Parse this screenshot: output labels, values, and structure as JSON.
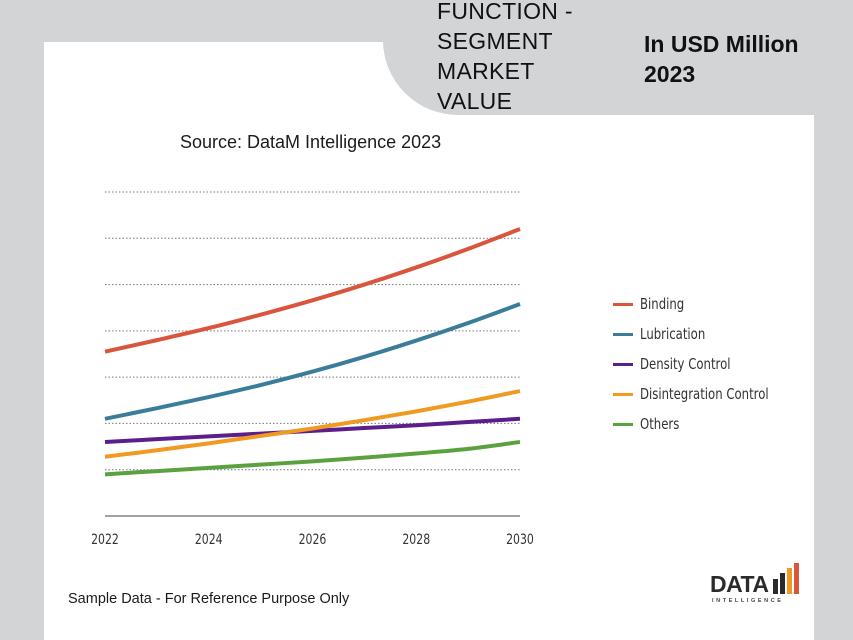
{
  "header": {
    "segment_title": "FUNCTION - SEGMENT MARKET VALUE",
    "unit_title": "In USD Million 2023"
  },
  "source_text": "Source: DataM Intelligence 2023",
  "footer_note": "Sample Data - For Reference Purpose Only",
  "logo": {
    "text": "DATA",
    "subtext": "INTELLIGENCE",
    "icon": "bar-chart-logo-icon"
  },
  "chart_data": {
    "type": "line",
    "title": "",
    "xlabel": "",
    "ylabel": "",
    "x_ticks": [
      "2022",
      "2024",
      "2026",
      "2028",
      "2030"
    ],
    "x": [
      2022,
      2023,
      2024,
      2025,
      2026,
      2027,
      2028,
      2029,
      2030
    ],
    "ylim": [
      0,
      7
    ],
    "grid": true,
    "legend_position": "right",
    "series": [
      {
        "name": "Binding",
        "color": "#d9553b",
        "values": [
          3.55,
          3.8,
          4.06,
          4.35,
          4.66,
          5.0,
          5.37,
          5.77,
          6.2
        ]
      },
      {
        "name": "Lubrication",
        "color": "#3a7d9b",
        "values": [
          2.1,
          2.33,
          2.57,
          2.83,
          3.12,
          3.44,
          3.79,
          4.17,
          4.58
        ]
      },
      {
        "name": "Density Control",
        "color": "#5a1f8c",
        "values": [
          1.6,
          1.66,
          1.72,
          1.78,
          1.84,
          1.9,
          1.96,
          2.03,
          2.1
        ]
      },
      {
        "name": "Disintegration Control",
        "color": "#f09a22",
        "values": [
          1.28,
          1.42,
          1.57,
          1.73,
          1.89,
          2.07,
          2.26,
          2.47,
          2.7
        ]
      },
      {
        "name": "Others",
        "color": "#5aa23e",
        "values": [
          0.9,
          0.97,
          1.04,
          1.11,
          1.18,
          1.26,
          1.35,
          1.45,
          1.6
        ]
      }
    ]
  }
}
